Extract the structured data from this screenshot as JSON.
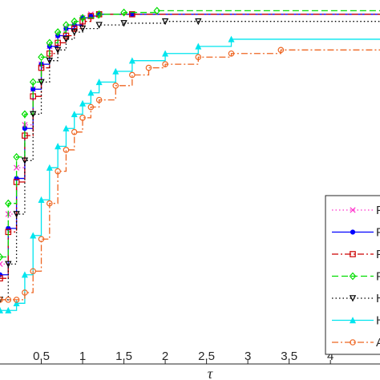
{
  "chart_data": {
    "type": "line",
    "title": "",
    "xlabel": "τ",
    "ylabel": "",
    "xlim": [
      0,
      4.6
    ],
    "ylim": [
      0,
      1.02
    ],
    "xticks": [
      "0.5",
      "1",
      "1.5",
      "2",
      "2.5",
      "3",
      "3.5",
      "4"
    ],
    "grid": false,
    "legend_placement": "bottom-right",
    "series": [
      {
        "legend_label": "P",
        "color": "#ff33cc",
        "linestyle": "dotted",
        "marker": "x",
        "x": [
          0,
          0.1,
          0.2,
          0.3,
          0.4,
          0.5,
          0.6,
          0.7,
          0.8,
          0.9,
          1.0,
          1.1,
          1.2,
          1.6,
          4.6
        ],
        "y": [
          0.28,
          0.42,
          0.55,
          0.67,
          0.77,
          0.84,
          0.89,
          0.92,
          0.94,
          0.95,
          0.97,
          0.98,
          0.98,
          0.98,
          0.98
        ]
      },
      {
        "legend_label": "P",
        "color": "#0000ff",
        "linestyle": "solid",
        "marker": "dot",
        "x": [
          0,
          0.1,
          0.2,
          0.3,
          0.4,
          0.5,
          0.6,
          0.7,
          0.8,
          0.9,
          1.0,
          1.1,
          1.2,
          1.6,
          4.6
        ],
        "y": [
          0.25,
          0.38,
          0.52,
          0.66,
          0.77,
          0.84,
          0.89,
          0.92,
          0.94,
          0.95,
          0.97,
          0.975,
          0.98,
          0.98,
          0.98
        ]
      },
      {
        "legend_label": "P",
        "color": "#cc0000",
        "linestyle": "dash-dot",
        "marker": "square",
        "x": [
          0,
          0.1,
          0.2,
          0.3,
          0.4,
          0.5,
          0.6,
          0.7,
          0.8,
          0.9,
          1.0,
          1.1,
          1.2,
          1.6,
          4.6
        ],
        "y": [
          0.24,
          0.37,
          0.51,
          0.64,
          0.75,
          0.83,
          0.87,
          0.9,
          0.92,
          0.94,
          0.96,
          0.975,
          0.98,
          0.98,
          0.98
        ]
      },
      {
        "legend_label": "P",
        "color": "#00dd00",
        "linestyle": "dashed",
        "marker": "diamond",
        "x": [
          0,
          0.1,
          0.2,
          0.3,
          0.4,
          0.5,
          0.6,
          0.7,
          0.8,
          0.9,
          1.0,
          1.2,
          1.5,
          1.9,
          4.6
        ],
        "y": [
          0.3,
          0.45,
          0.58,
          0.7,
          0.79,
          0.86,
          0.9,
          0.93,
          0.95,
          0.96,
          0.97,
          0.98,
          0.985,
          0.99,
          0.99
        ]
      },
      {
        "legend_label": "H",
        "color": "#000000",
        "linestyle": "dotted",
        "marker": "triangle-down",
        "x": [
          0,
          0.1,
          0.2,
          0.3,
          0.4,
          0.5,
          0.6,
          0.7,
          0.8,
          0.9,
          1.0,
          1.2,
          1.5,
          2.0,
          2.4,
          4.6
        ],
        "y": [
          0.18,
          0.28,
          0.42,
          0.57,
          0.7,
          0.79,
          0.85,
          0.88,
          0.91,
          0.93,
          0.94,
          0.95,
          0.955,
          0.96,
          0.96,
          0.96
        ]
      },
      {
        "legend_label": "H",
        "color": "#00e5ee",
        "linestyle": "solid",
        "marker": "triangle-up",
        "x": [
          0,
          0.1,
          0.2,
          0.3,
          0.4,
          0.5,
          0.6,
          0.7,
          0.8,
          0.9,
          1.0,
          1.1,
          1.2,
          1.4,
          1.6,
          2.0,
          2.4,
          2.8,
          4.6
        ],
        "y": [
          0.15,
          0.15,
          0.17,
          0.25,
          0.36,
          0.46,
          0.55,
          0.61,
          0.66,
          0.7,
          0.73,
          0.76,
          0.79,
          0.82,
          0.85,
          0.87,
          0.89,
          0.91,
          0.91
        ]
      },
      {
        "legend_label": "A",
        "color": "#ee6622",
        "linestyle": "dash-dot",
        "marker": "circle",
        "x": [
          0,
          0.1,
          0.2,
          0.3,
          0.4,
          0.5,
          0.6,
          0.7,
          0.8,
          0.9,
          1.0,
          1.1,
          1.2,
          1.4,
          1.6,
          1.8,
          2.0,
          2.4,
          2.8,
          3.4,
          4.6
        ],
        "y": [
          0.18,
          0.18,
          0.18,
          0.2,
          0.26,
          0.35,
          0.45,
          0.54,
          0.6,
          0.65,
          0.69,
          0.72,
          0.74,
          0.78,
          0.81,
          0.83,
          0.84,
          0.86,
          0.87,
          0.88,
          0.88
        ]
      }
    ]
  }
}
